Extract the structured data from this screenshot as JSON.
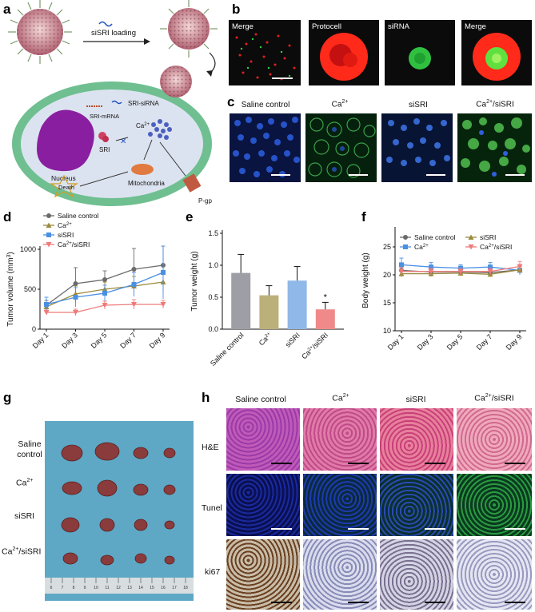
{
  "panels": {
    "a": {
      "letter": "a",
      "loading_label": "siSRI loading",
      "labels": {
        "sri_sirna": "SRI-siRNA",
        "sri_mrna": "SRI-mRNA",
        "nucleus": "Nucleus",
        "ca": "Ca",
        "ca_sup": "2+",
        "sri": "SRI",
        "death": "Death",
        "mitochondria": "Mitochondria",
        "pgp": "P-gp"
      }
    },
    "b": {
      "letter": "b",
      "tiles": [
        {
          "label": "Merge"
        },
        {
          "label": "Protocell"
        },
        {
          "label": "siRNA"
        },
        {
          "label": "Merge"
        }
      ]
    },
    "c": {
      "letter": "c",
      "columns": [
        {
          "label": "Saline control",
          "sup": ""
        },
        {
          "label": "Ca",
          "sup": "2+"
        },
        {
          "label": "siSRI",
          "sup": ""
        },
        {
          "label": "Ca",
          "sup": "2+",
          "suffix": "/siSRI"
        }
      ]
    },
    "g": {
      "letter": "g",
      "rows": [
        {
          "line1": "Saline",
          "line2": "control",
          "sup": ""
        },
        {
          "line1": "Ca",
          "line2": "",
          "sup": "2+"
        },
        {
          "line1": "siSRI",
          "line2": "",
          "sup": ""
        },
        {
          "line1": "Ca",
          "line2": "",
          "sup": "2+",
          "suffix": "/siSRI"
        }
      ],
      "ruler_numbers": [
        "6",
        "7",
        "8",
        "9",
        "10",
        "11",
        "12",
        "13",
        "14",
        "15",
        "16",
        "17",
        "18"
      ]
    },
    "h": {
      "letter": "h",
      "columns": [
        {
          "label": "Saline control",
          "sup": ""
        },
        {
          "label": "Ca",
          "sup": "2+"
        },
        {
          "label": "siSRI",
          "sup": ""
        },
        {
          "label": "Ca",
          "sup": "2+",
          "suffix": "/siSRI"
        }
      ],
      "rows": [
        {
          "label": "H&E"
        },
        {
          "label": "Tunel"
        },
        {
          "label": "ki67"
        }
      ]
    }
  },
  "chart_data": [
    {
      "id": "d",
      "letter": "d",
      "type": "line",
      "xlabel": "",
      "ylabel": "Tumor volume (mm",
      "ylabel_sup": "3",
      "ylabel_end": ")",
      "categories": [
        "Day 1",
        "Day 3",
        "Day 5",
        "Day 7",
        "Day 9"
      ],
      "ylim": [
        0,
        1000
      ],
      "yticks": [
        0,
        500,
        1000
      ],
      "legend": "top-left",
      "series": [
        {
          "name": "Saline control",
          "color": "#6b6b6b",
          "marker": "circle",
          "values": [
            300,
            570,
            620,
            750,
            800
          ],
          "err": [
            60,
            200,
            110,
            260,
            240
          ]
        },
        {
          "name": "Ca",
          "sup": "2+",
          "color": "#9b8a3c",
          "marker": "triangle",
          "values": [
            280,
            440,
            500,
            540,
            590
          ],
          "err": [
            50,
            100,
            90,
            120,
            110
          ]
        },
        {
          "name": "siSRI",
          "color": "#4a90e2",
          "marker": "square",
          "values": [
            310,
            400,
            450,
            560,
            710
          ],
          "err": [
            90,
            120,
            100,
            150,
            330
          ]
        },
        {
          "name": "Ca",
          "sup": "2+",
          "suffix": "/siSRI",
          "color": "#f07a7a",
          "marker": "triangle-down",
          "values": [
            210,
            210,
            300,
            310,
            310
          ],
          "err": [
            30,
            40,
            50,
            60,
            50
          ]
        }
      ]
    },
    {
      "id": "e",
      "letter": "e",
      "type": "bar",
      "xlabel": "",
      "ylabel": "Tumor weight (g)",
      "categories": [
        {
          "label": "Saline control",
          "sup": ""
        },
        {
          "label": "Ca",
          "sup": "2+"
        },
        {
          "label": "siSRI",
          "sup": ""
        },
        {
          "label": "Ca",
          "sup": "2+",
          "suffix": "/siSRI"
        }
      ],
      "values": [
        0.88,
        0.53,
        0.76,
        0.31
      ],
      "errors": [
        0.29,
        0.15,
        0.22,
        0.11
      ],
      "colors": [
        "#9e9ea6",
        "#bcb07a",
        "#90b8e8",
        "#f08a8a"
      ],
      "annotations": [
        "",
        "",
        "",
        "*"
      ],
      "ylim": [
        0.0,
        1.5
      ],
      "yticks": [
        "0.0",
        "0.5",
        "1.0",
        "1.5"
      ]
    },
    {
      "id": "f",
      "letter": "f",
      "type": "line",
      "xlabel": "",
      "ylabel": "Body weight (g)",
      "categories": [
        "Day 1",
        "Day 3",
        "Day 5",
        "Day 7",
        "Day 9"
      ],
      "ylim": [
        10,
        28
      ],
      "yticks": [
        10,
        15,
        20,
        25
      ],
      "legend": "top",
      "series": [
        {
          "name": "Saline control",
          "color": "#6b6b6b",
          "marker": "circle",
          "values": [
            20.8,
            20.5,
            20.5,
            20.4,
            20.9
          ],
          "err": [
            0.8,
            0.6,
            0.6,
            0.6,
            0.8
          ]
        },
        {
          "name": "Ca",
          "sup": "2+",
          "color": "#4a90e2",
          "marker": "square",
          "values": [
            21.8,
            21.4,
            21.2,
            21.4,
            20.8
          ],
          "err": [
            1.2,
            0.8,
            0.6,
            0.8,
            0.8
          ]
        },
        {
          "name": "siSRI",
          "color": "#9b8a3c",
          "marker": "triangle",
          "values": [
            20.2,
            20.2,
            20.3,
            20.1,
            20.9
          ],
          "err": [
            0.6,
            0.5,
            0.5,
            0.5,
            0.6
          ]
        },
        {
          "name": "Ca",
          "sup": "2+",
          "suffix": "/siSRI",
          "color": "#f07a7a",
          "marker": "triangle-down",
          "values": [
            20.6,
            20.6,
            20.6,
            20.6,
            21.5
          ],
          "err": [
            0.7,
            0.6,
            0.6,
            0.6,
            0.9
          ]
        }
      ]
    }
  ]
}
